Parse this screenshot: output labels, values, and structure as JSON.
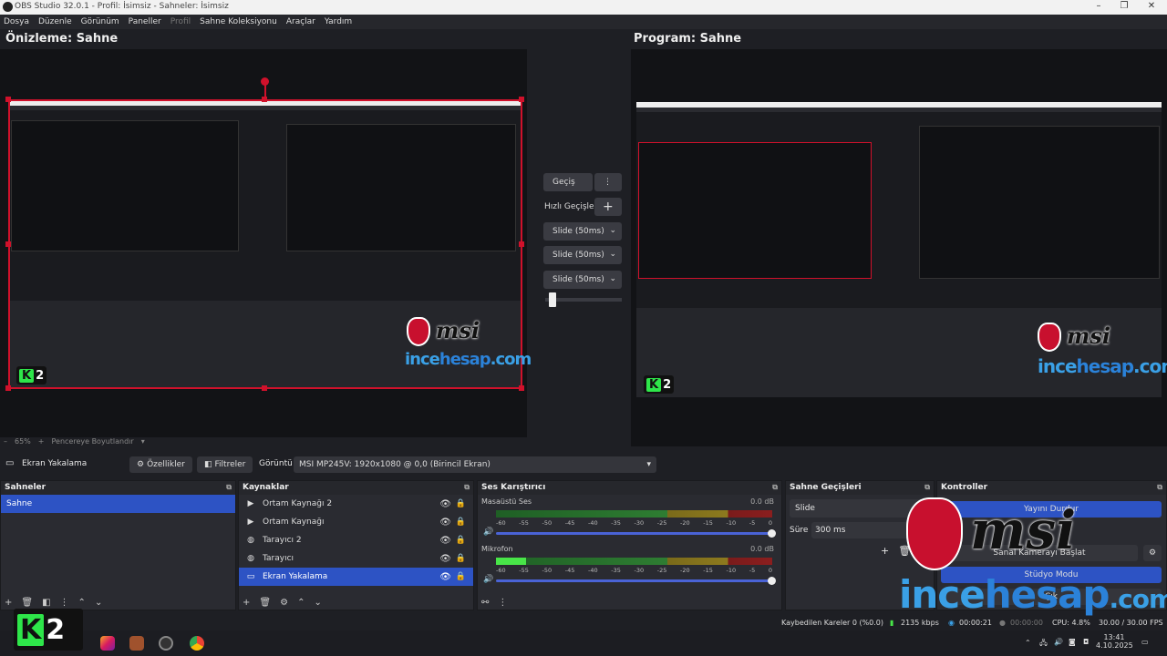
{
  "window": {
    "title": "OBS Studio 32.0.1 - Profil: İsimsiz - Sahneler: İsimsiz",
    "minimize": "–",
    "maximize": "❐",
    "close": "✕"
  },
  "menu": [
    {
      "label": "Dosya"
    },
    {
      "label": "Düzenle"
    },
    {
      "label": "Görünüm"
    },
    {
      "label": "Paneller"
    },
    {
      "label": "Profil"
    },
    {
      "label": "Sahne Koleksiyonu"
    },
    {
      "label": "Araçlar"
    },
    {
      "label": "Yardım"
    }
  ],
  "preview": {
    "label": "Önizleme: Sahne",
    "zoom": "65%",
    "zoom_minus": "–",
    "zoom_plus": "+",
    "fit": "Pencereye Boyutlandır"
  },
  "program": {
    "label": "Program: Sahne"
  },
  "transition": {
    "button": "Geçiş",
    "quick": "Hızlı Geçişler",
    "items": [
      "Slide (50ms)",
      "Slide (50ms)",
      "Slide (50ms)"
    ],
    "tbar_position": 0.05
  },
  "toolbar": {
    "source": "Ekran Yakalama",
    "properties": "Özellikler",
    "filters": "Filtreler",
    "display_label": "Görüntü",
    "display_value": "MSI MP245V: 1920x1080 @ 0,0 (Birincil Ekran)"
  },
  "docks": {
    "scenes": {
      "title": "Sahneler",
      "items": [
        {
          "name": "Sahne",
          "selected": true
        }
      ]
    },
    "sources": {
      "title": "Kaynaklar",
      "items": [
        {
          "name": "Ortam Kaynağı 2",
          "icon": "play-icon"
        },
        {
          "name": "Ortam Kaynağı",
          "icon": "play-icon"
        },
        {
          "name": "Tarayıcı 2",
          "icon": "globe-icon"
        },
        {
          "name": "Tarayıcı",
          "icon": "globe-icon"
        },
        {
          "name": "Ekran Yakalama",
          "icon": "monitor-icon",
          "selected": true
        }
      ]
    },
    "mixer": {
      "title": "Ses Karıştırıcı",
      "channels": [
        {
          "name": "Masaüstü Ses",
          "db": "0.0 dB",
          "level": 0.0
        },
        {
          "name": "Mikrofon",
          "db": "0.0 dB",
          "level": 0.11
        }
      ],
      "ticks": [
        "-60",
        "-55",
        "-50",
        "-45",
        "-40",
        "-35",
        "-30",
        "-25",
        "-20",
        "-15",
        "-10",
        "-5",
        "0"
      ]
    },
    "transitions": {
      "title": "Sahne Geçişleri",
      "type": "Slide",
      "duration_label": "Süre",
      "duration": "300 ms"
    },
    "controls": {
      "title": "Kontroller",
      "stop_stream": "Yayını Durdur",
      "virtual_cam": "Sanal Kamerayı Başlat",
      "studio": "Stüdyo Modu",
      "exit": "Çık"
    }
  },
  "status": {
    "dropped": "Kaybedilen Kareler 0 (%0.0)",
    "kbps": "2135 kbps",
    "live_time": "00:00:21",
    "rec_time": "00:00:00",
    "cpu": "CPU: 4.8%",
    "fps": "30.00 / 30.00 FPS"
  },
  "taskbar": {
    "time": "13:41",
    "date": "4.10.2025"
  },
  "watermark": {
    "brand": "msi",
    "site_a": "ince",
    "site_b": "hesap",
    "site_c": ".com",
    "k2_a": "K",
    "k2_b": "2"
  },
  "colors": {
    "accent": "#2d53c4",
    "selection_red": "#d0112b",
    "meter_green": "#48e548"
  }
}
